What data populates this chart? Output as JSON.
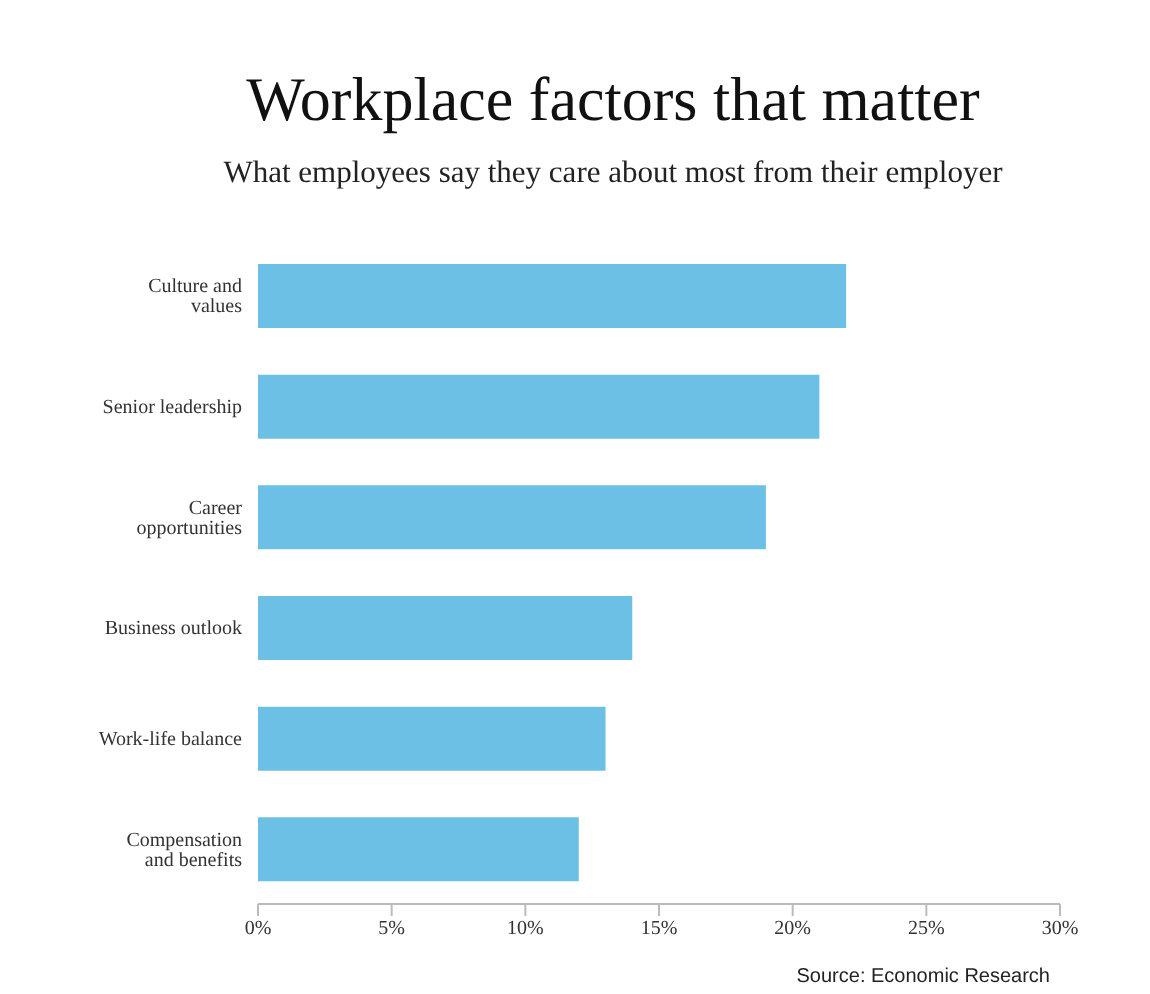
{
  "chart_data": {
    "type": "bar",
    "orientation": "horizontal",
    "title": "Workplace factors that matter",
    "subtitle": "What employees say they care about most from their employer",
    "categories": [
      "Culture and values",
      "Senior leadership",
      "Career opportunities",
      "Business outlook",
      "Work-life balance",
      "Compensation and benefits"
    ],
    "values": [
      22,
      21,
      19,
      14,
      13,
      12
    ],
    "color": "#6cc0e5",
    "xlim": [
      0,
      30
    ],
    "xticks": [
      {
        "value": 0,
        "label": "0%"
      },
      {
        "value": 5,
        "label": "5%"
      },
      {
        "value": 10,
        "label": "10%"
      },
      {
        "value": 15,
        "label": "15%"
      },
      {
        "value": 20,
        "label": "20%"
      },
      {
        "value": 25,
        "label": "25%"
      },
      {
        "value": 30,
        "label": "30%"
      }
    ],
    "grid": false,
    "legend": false,
    "annotations": [
      "Source: Economic Research"
    ]
  }
}
